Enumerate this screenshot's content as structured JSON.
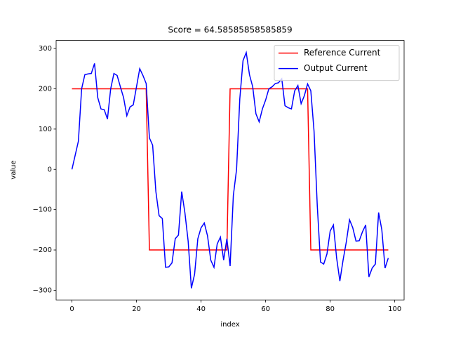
{
  "chart_data": {
    "type": "line",
    "title": "Score = 64.58585858585859",
    "x_label": "index",
    "y_label": "value",
    "x": [
      0,
      1,
      2,
      3,
      4,
      5,
      6,
      7,
      8,
      9,
      10,
      11,
      12,
      13,
      14,
      15,
      16,
      17,
      18,
      19,
      20,
      21,
      22,
      23,
      24,
      25,
      26,
      27,
      28,
      29,
      30,
      31,
      32,
      33,
      34,
      35,
      36,
      37,
      38,
      39,
      40,
      41,
      42,
      43,
      44,
      45,
      46,
      47,
      48,
      49,
      50,
      51,
      52,
      53,
      54,
      55,
      56,
      57,
      58,
      59,
      60,
      61,
      62,
      63,
      64,
      65,
      66,
      67,
      68,
      69,
      70,
      71,
      72,
      73,
      74,
      75,
      76,
      77,
      78,
      79,
      80,
      81,
      82,
      83,
      84,
      85,
      86,
      87,
      88,
      89,
      90,
      91,
      92,
      93,
      94,
      95,
      96,
      97,
      98
    ],
    "series": [
      {
        "name": "Reference Current",
        "color": "#ff0000",
        "values": [
          200,
          200,
          200,
          200,
          200,
          200,
          200,
          200,
          200,
          200,
          200,
          200,
          200,
          200,
          200,
          200,
          200,
          200,
          200,
          200,
          200,
          200,
          200,
          200,
          -200,
          -200,
          -200,
          -200,
          -200,
          -200,
          -200,
          -200,
          -200,
          -200,
          -200,
          -200,
          -200,
          -200,
          -200,
          -200,
          -200,
          -200,
          -200,
          -200,
          -200,
          -200,
          -200,
          -200,
          -200,
          200,
          200,
          200,
          200,
          200,
          200,
          200,
          200,
          200,
          200,
          200,
          200,
          200,
          200,
          200,
          200,
          200,
          200,
          200,
          200,
          200,
          200,
          200,
          200,
          200,
          -200,
          -200,
          -200,
          -200,
          -200,
          -200,
          -200,
          -200,
          -200,
          -200,
          -200,
          -200,
          -200,
          -200,
          -200,
          -200,
          -200,
          -200,
          -200,
          -200,
          -200,
          -200,
          -200,
          -200,
          -200
        ]
      },
      {
        "name": "Output Current",
        "color": "#0000ff",
        "values": [
          0,
          35,
          70,
          200,
          235,
          237,
          238,
          263,
          178,
          150,
          148,
          125,
          200,
          238,
          233,
          205,
          178,
          133,
          155,
          160,
          205,
          250,
          233,
          213,
          78,
          60,
          -55,
          -115,
          -122,
          -243,
          -242,
          -232,
          -172,
          -163,
          -55,
          -108,
          -178,
          -295,
          -260,
          -172,
          -145,
          -133,
          -165,
          -225,
          -243,
          -185,
          -168,
          -225,
          -172,
          -240,
          -65,
          0,
          175,
          270,
          290,
          235,
          205,
          138,
          118,
          150,
          172,
          200,
          205,
          213,
          215,
          225,
          158,
          153,
          150,
          195,
          208,
          163,
          183,
          212,
          195,
          95,
          -90,
          -230,
          -235,
          -210,
          -153,
          -138,
          -220,
          -277,
          -225,
          -180,
          -125,
          -145,
          -178,
          -177,
          -155,
          -138,
          -267,
          -245,
          -235,
          -107,
          -150,
          -245,
          -220
        ]
      }
    ],
    "xlim": [
      -4.9,
      102.9
    ],
    "ylim": [
      -324,
      320
    ],
    "xticks": [
      0,
      20,
      40,
      60,
      80,
      100
    ],
    "yticks": [
      {
        "value": -300,
        "label": "−300"
      },
      {
        "value": -200,
        "label": "−200"
      },
      {
        "value": -100,
        "label": "−100"
      },
      0,
      100,
      200,
      300
    ],
    "legend": "upper right",
    "grid": false
  }
}
